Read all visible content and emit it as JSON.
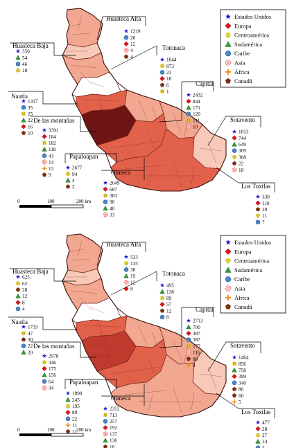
{
  "legend": [
    {
      "label": "Estados Unidos",
      "icon": "star-icon",
      "color": "#1a1adb"
    },
    {
      "label": "Europa",
      "icon": "diamond-icon",
      "color": "#e8101a"
    },
    {
      "label": "Centroamérica",
      "icon": "sun-icon",
      "color": "#f0e000"
    },
    {
      "label": "Sudamérica",
      "icon": "triangle-icon",
      "color": "#3a9a3a"
    },
    {
      "label": "Caribe",
      "icon": "circle-icon",
      "color": "#4a86c8"
    },
    {
      "label": "Asia",
      "icon": "flower-icon",
      "color": "#f07070"
    },
    {
      "label": "África",
      "icon": "cross-icon",
      "color": "#f08a1a"
    },
    {
      "label": "Canadá",
      "icon": "pentagon-icon",
      "color": "#7a3010"
    }
  ],
  "scale": {
    "labels": [
      "0",
      "100",
      "200 km"
    ]
  },
  "maps": [
    {
      "regions": [
        {
          "name": "Huasteca Baja",
          "values": [
            {
              "cat": 0,
              "v": "350"
            },
            {
              "cat": 3,
              "v": "54"
            },
            {
              "cat": 4,
              "v": "46"
            },
            {
              "cat": 2,
              "v": "18"
            }
          ]
        },
        {
          "name": "Huasteca Alta",
          "values": [
            {
              "cat": 0,
              "v": "1219"
            },
            {
              "cat": 4,
              "v": "20"
            },
            {
              "cat": 1,
              "v": "12"
            },
            {
              "cat": 5,
              "v": "4"
            },
            {
              "cat": 7,
              "v": "4"
            }
          ]
        },
        {
          "name": "Totonaca",
          "values": [
            {
              "cat": 0,
              "v": "1044"
            },
            {
              "cat": 2,
              "v": "873"
            },
            {
              "cat": 4,
              "v": "23"
            },
            {
              "cat": 1,
              "v": "18"
            },
            {
              "cat": 7,
              "v": "6"
            },
            {
              "cat": 2,
              "v": "1"
            }
          ]
        },
        {
          "name": "Nautla",
          "values": [
            {
              "cat": 0,
              "v": "1417"
            },
            {
              "cat": 4,
              "v": "35"
            },
            {
              "cat": 2,
              "v": "25"
            },
            {
              "cat": 3,
              "v": "22"
            },
            {
              "cat": 1,
              "v": "16"
            },
            {
              "cat": 7,
              "v": "10"
            }
          ]
        },
        {
          "name": "Capital",
          "values": [
            {
              "cat": 0,
              "v": "2432"
            },
            {
              "cat": 1,
              "v": "844"
            },
            {
              "cat": 3,
              "v": "171"
            },
            {
              "cat": 4,
              "v": "120"
            },
            {
              "cat": 2,
              "v": "111"
            },
            {
              "cat": 5,
              "v": "10"
            }
          ]
        },
        {
          "name": "De las montañas",
          "values": [
            {
              "cat": 0,
              "v": "3391"
            },
            {
              "cat": 1,
              "v": "184"
            },
            {
              "cat": 2,
              "v": "182"
            },
            {
              "cat": 3,
              "v": "118"
            },
            {
              "cat": 4,
              "v": "43"
            },
            {
              "cat": 5,
              "v": "14"
            },
            {
              "cat": 6,
              "v": "13"
            },
            {
              "cat": 7,
              "v": "9"
            }
          ]
        },
        {
          "name": "Sotavento",
          "values": [
            {
              "cat": 0,
              "v": "1813"
            },
            {
              "cat": 1,
              "v": "744"
            },
            {
              "cat": 3,
              "v": "649"
            },
            {
              "cat": 4,
              "v": "309"
            },
            {
              "cat": 2,
              "v": "308"
            },
            {
              "cat": 7,
              "v": "22"
            },
            {
              "cat": 5,
              "v": "18"
            }
          ]
        },
        {
          "name": "Papaloapan",
          "values": [
            {
              "cat": 0,
              "v": "2677"
            },
            {
              "cat": 2,
              "v": "94"
            },
            {
              "cat": 3,
              "v": "4"
            },
            {
              "cat": 7,
              "v": "2"
            }
          ]
        },
        {
          "name": "Olmeca",
          "values": [
            {
              "cat": 0,
              "v": "2049"
            },
            {
              "cat": 1,
              "v": "687"
            },
            {
              "cat": 2,
              "v": "383"
            },
            {
              "cat": 4,
              "v": "90"
            },
            {
              "cat": 3,
              "v": "40"
            },
            {
              "cat": 5,
              "v": "33"
            }
          ]
        },
        {
          "name": "Los Tuxtlas",
          "values": [
            {
              "cat": 0,
              "v": "330"
            },
            {
              "cat": 1,
              "v": "110"
            },
            {
              "cat": 7,
              "v": "20"
            },
            {
              "cat": 2,
              "v": "11"
            },
            {
              "cat": 4,
              "v": "7"
            }
          ]
        }
      ]
    },
    {
      "regions": [
        {
          "name": "Huasteca Baja",
          "values": [
            {
              "cat": 0,
              "v": "625"
            },
            {
              "cat": 2,
              "v": "62"
            },
            {
              "cat": 7,
              "v": "28"
            },
            {
              "cat": 3,
              "v": "12"
            },
            {
              "cat": 1,
              "v": "8"
            },
            {
              "cat": 4,
              "v": "4"
            }
          ]
        },
        {
          "name": "Huasteca Alta",
          "values": [
            {
              "cat": 0,
              "v": "523"
            },
            {
              "cat": 2,
              "v": "135"
            },
            {
              "cat": 4,
              "v": "38"
            },
            {
              "cat": 3,
              "v": "19"
            },
            {
              "cat": 5,
              "v": "12"
            },
            {
              "cat": 1,
              "v": "8"
            }
          ]
        },
        {
          "name": "Totonaca",
          "values": [
            {
              "cat": 0,
              "v": "495"
            },
            {
              "cat": 3,
              "v": "138"
            },
            {
              "cat": 2,
              "v": "89"
            },
            {
              "cat": 1,
              "v": "57"
            },
            {
              "cat": 7,
              "v": "12"
            },
            {
              "cat": 4,
              "v": "8"
            }
          ]
        },
        {
          "name": "Nautla",
          "values": [
            {
              "cat": 0,
              "v": "1733"
            },
            {
              "cat": 2,
              "v": "47"
            },
            {
              "cat": 7,
              "v": "30"
            },
            {
              "cat": 4,
              "v": "22"
            },
            {
              "cat": 3,
              "v": "20"
            }
          ]
        },
        {
          "name": "Capital",
          "values": [
            {
              "cat": 0,
              "v": "2713"
            },
            {
              "cat": 3,
              "v": "700"
            },
            {
              "cat": 1,
              "v": "387"
            },
            {
              "cat": 4,
              "v": "387"
            },
            {
              "cat": 2,
              "v": "177"
            },
            {
              "cat": 5,
              "v": "116"
            },
            {
              "cat": 7,
              "v": "80"
            },
            {
              "cat": 6,
              "v": "4"
            }
          ]
        },
        {
          "name": "De las montañas",
          "values": [
            {
              "cat": 0,
              "v": "2978"
            },
            {
              "cat": 2,
              "v": "346"
            },
            {
              "cat": 1,
              "v": "175"
            },
            {
              "cat": 3,
              "v": "156"
            },
            {
              "cat": 4,
              "v": "64"
            },
            {
              "cat": 5,
              "v": "34"
            }
          ]
        },
        {
          "name": "Sotavento",
          "values": [
            {
              "cat": 0,
              "v": "1464"
            },
            {
              "cat": 2,
              "v": "856"
            },
            {
              "cat": 3,
              "v": "758"
            },
            {
              "cat": 1,
              "v": "399"
            },
            {
              "cat": 4,
              "v": "340"
            },
            {
              "cat": 7,
              "v": "80"
            },
            {
              "cat": 7,
              "v": "60"
            },
            {
              "cat": 6,
              "v": "5"
            }
          ]
        },
        {
          "name": "Papaloapan",
          "values": [
            {
              "cat": 0,
              "v": "1890"
            },
            {
              "cat": 3,
              "v": "245"
            },
            {
              "cat": 2,
              "v": "195"
            },
            {
              "cat": 1,
              "v": "89"
            },
            {
              "cat": 4,
              "v": "22"
            },
            {
              "cat": 6,
              "v": "11"
            },
            {
              "cat": 7,
              "v": "11"
            }
          ]
        },
        {
          "name": "Olmeca",
          "values": [
            {
              "cat": 0,
              "v": "2352"
            },
            {
              "cat": 2,
              "v": "713"
            },
            {
              "cat": 4,
              "v": "257"
            },
            {
              "cat": 1,
              "v": "192"
            },
            {
              "cat": 5,
              "v": "137"
            },
            {
              "cat": 3,
              "v": "136"
            },
            {
              "cat": 7,
              "v": "18"
            }
          ]
        },
        {
          "name": "Los Tuxtlas",
          "values": [
            {
              "cat": 0,
              "v": "477"
            },
            {
              "cat": 1,
              "v": "28"
            },
            {
              "cat": 2,
              "v": "27"
            },
            {
              "cat": 3,
              "v": "14"
            },
            {
              "cat": 4,
              "v": "3"
            }
          ]
        }
      ]
    }
  ]
}
